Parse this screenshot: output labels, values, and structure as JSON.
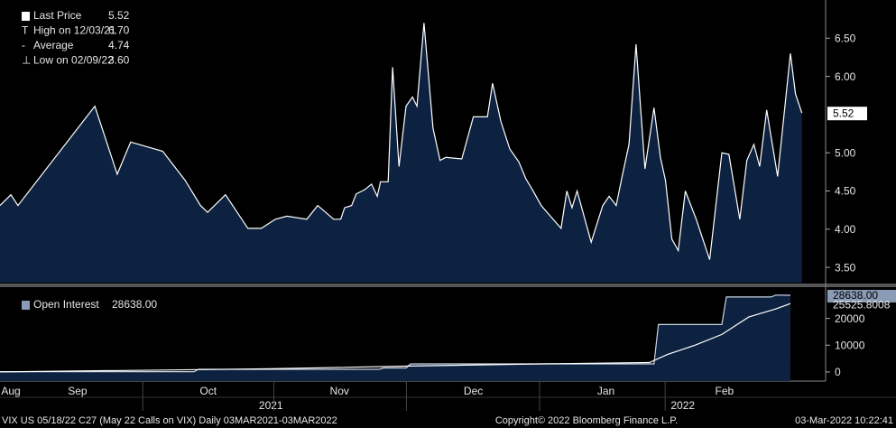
{
  "chart_data": [
    {
      "type": "area",
      "xlim": [
        0,
        128.9
      ],
      "ylim": [
        3.3,
        7.0
      ],
      "yticks": [
        {
          "value": 3.5,
          "label": "3.50"
        },
        {
          "value": 4.0,
          "label": "4.00"
        },
        {
          "value": 4.5,
          "label": "4.50"
        },
        {
          "value": 5.0,
          "label": "5.00"
        },
        {
          "value": 6.0,
          "label": "6.00"
        },
        {
          "value": 6.5,
          "label": "6.50"
        }
      ],
      "xticks": [
        {
          "value": 1.7,
          "label": "Aug"
        },
        {
          "value": 12.1,
          "label": "Sep"
        },
        {
          "value": 32.5,
          "label": "Oct"
        },
        {
          "value": 53,
          "label": "Nov"
        },
        {
          "value": 73.9,
          "label": "Dec"
        },
        {
          "value": 94.6,
          "label": "Jan"
        },
        {
          "value": 113.1,
          "label": "Feb"
        }
      ],
      "years": [
        {
          "value": 42.3,
          "label": "2021"
        },
        {
          "value": 106.6,
          "label": "2022"
        }
      ],
      "legend": [
        {
          "label": "Last Price",
          "value": "5.52"
        },
        {
          "label": "High on 12/03/21",
          "value": "6.70"
        },
        {
          "label": "Average",
          "value": "4.74"
        },
        {
          "label": "Low on 02/09/22",
          "value": "3.60"
        }
      ],
      "series": [
        {
          "name": "Last Price",
          "color": "#0d2240",
          "line": "#ffffff",
          "last_label": "5.52",
          "x": [
            0,
            1.7,
            2.8,
            14.8,
            18.3,
            20.4,
            25.4,
            28.9,
            31.3,
            32.4,
            35.2,
            38.7,
            40.8,
            43,
            44.8,
            47.9,
            49.6,
            52.1,
            53.2,
            53.8,
            54.9,
            55.6,
            57,
            58,
            58.9,
            59.4,
            60.6,
            61.3,
            62.3,
            63.4,
            64.4,
            65.1,
            66.2,
            67.6,
            68.7,
            69.6,
            72.1,
            73.9,
            76.1,
            76.9,
            78.2,
            79.6,
            81,
            82.1,
            83.1,
            84.5,
            87.6,
            88.5,
            89.3,
            90.1,
            92.3,
            94.1,
            95.1,
            96.2,
            97.2,
            98.2,
            99.3,
            100.7,
            102.1,
            103.1,
            103.9,
            104.9,
            105.9,
            107,
            108.7,
            110.8,
            112.7,
            113.8,
            115.5,
            116.6,
            117.7,
            118.6,
            119.7,
            121.4,
            123.4,
            124.2,
            125.2
          ],
          "values": [
            4.31,
            4.45,
            4.31,
            5.61,
            4.72,
            5.14,
            5.02,
            4.64,
            4.31,
            4.22,
            4.45,
            4.01,
            4.01,
            4.13,
            4.17,
            4.13,
            4.31,
            4.13,
            4.13,
            4.28,
            4.31,
            4.46,
            4.52,
            4.59,
            4.43,
            4.62,
            4.62,
            6.12,
            4.82,
            5.61,
            5.73,
            5.61,
            6.7,
            5.32,
            4.9,
            4.94,
            4.92,
            5.47,
            5.47,
            5.91,
            5.41,
            5.05,
            4.88,
            4.66,
            4.52,
            4.31,
            4.01,
            4.5,
            4.28,
            4.5,
            3.83,
            4.31,
            4.43,
            4.31,
            4.72,
            5.11,
            6.42,
            4.79,
            5.59,
            4.94,
            4.64,
            3.87,
            3.72,
            4.5,
            4.13,
            3.6,
            5.0,
            4.98,
            4.13,
            4.9,
            5.11,
            4.82,
            5.56,
            4.69,
            6.3,
            5.77,
            5.52
          ]
        }
      ]
    },
    {
      "type": "area",
      "xlim": [
        0,
        128.9
      ],
      "ylim": [
        -3400,
        31000
      ],
      "yticks": [
        0,
        10000,
        20000
      ],
      "series": [
        {
          "name": "Open Interest",
          "color": "#0d2240",
          "line": "#c8d2e0",
          "tag": "#8a9bb5",
          "last_label": "28638.00",
          "x": [
            0,
            30.3,
            31,
            59.2,
            59.9,
            63.4,
            64.1,
            102.1,
            102.8,
            112.7,
            113.4,
            120.4,
            121.1,
            123.4
          ],
          "values": [
            100,
            100,
            1000,
            1000,
            1500,
            1500,
            3000,
            3000,
            17700,
            17700,
            28000,
            28000,
            28700,
            28638
          ]
        },
        {
          "color": "#ffffff",
          "line": "#ffffff",
          "last_label": "25525.8008",
          "x": [
            0,
            42.3,
            64.1,
            84.5,
            101.4,
            104.2,
            108.5,
            112.7,
            116.9,
            121.1,
            123.4
          ],
          "values": [
            0,
            1200,
            2200,
            3000,
            3500,
            6500,
            10000,
            14000,
            20500,
            23500,
            25525.8
          ]
        }
      ]
    }
  ],
  "footer": {
    "left": "VIX US 05/18/22 C27 (May 22 Calls on VIX)  Daily 03MAR2021-03MAR2022",
    "center": "Copyright© 2022 Bloomberg Finance L.P.",
    "right": "03-Mar-2022 10:22:41"
  }
}
